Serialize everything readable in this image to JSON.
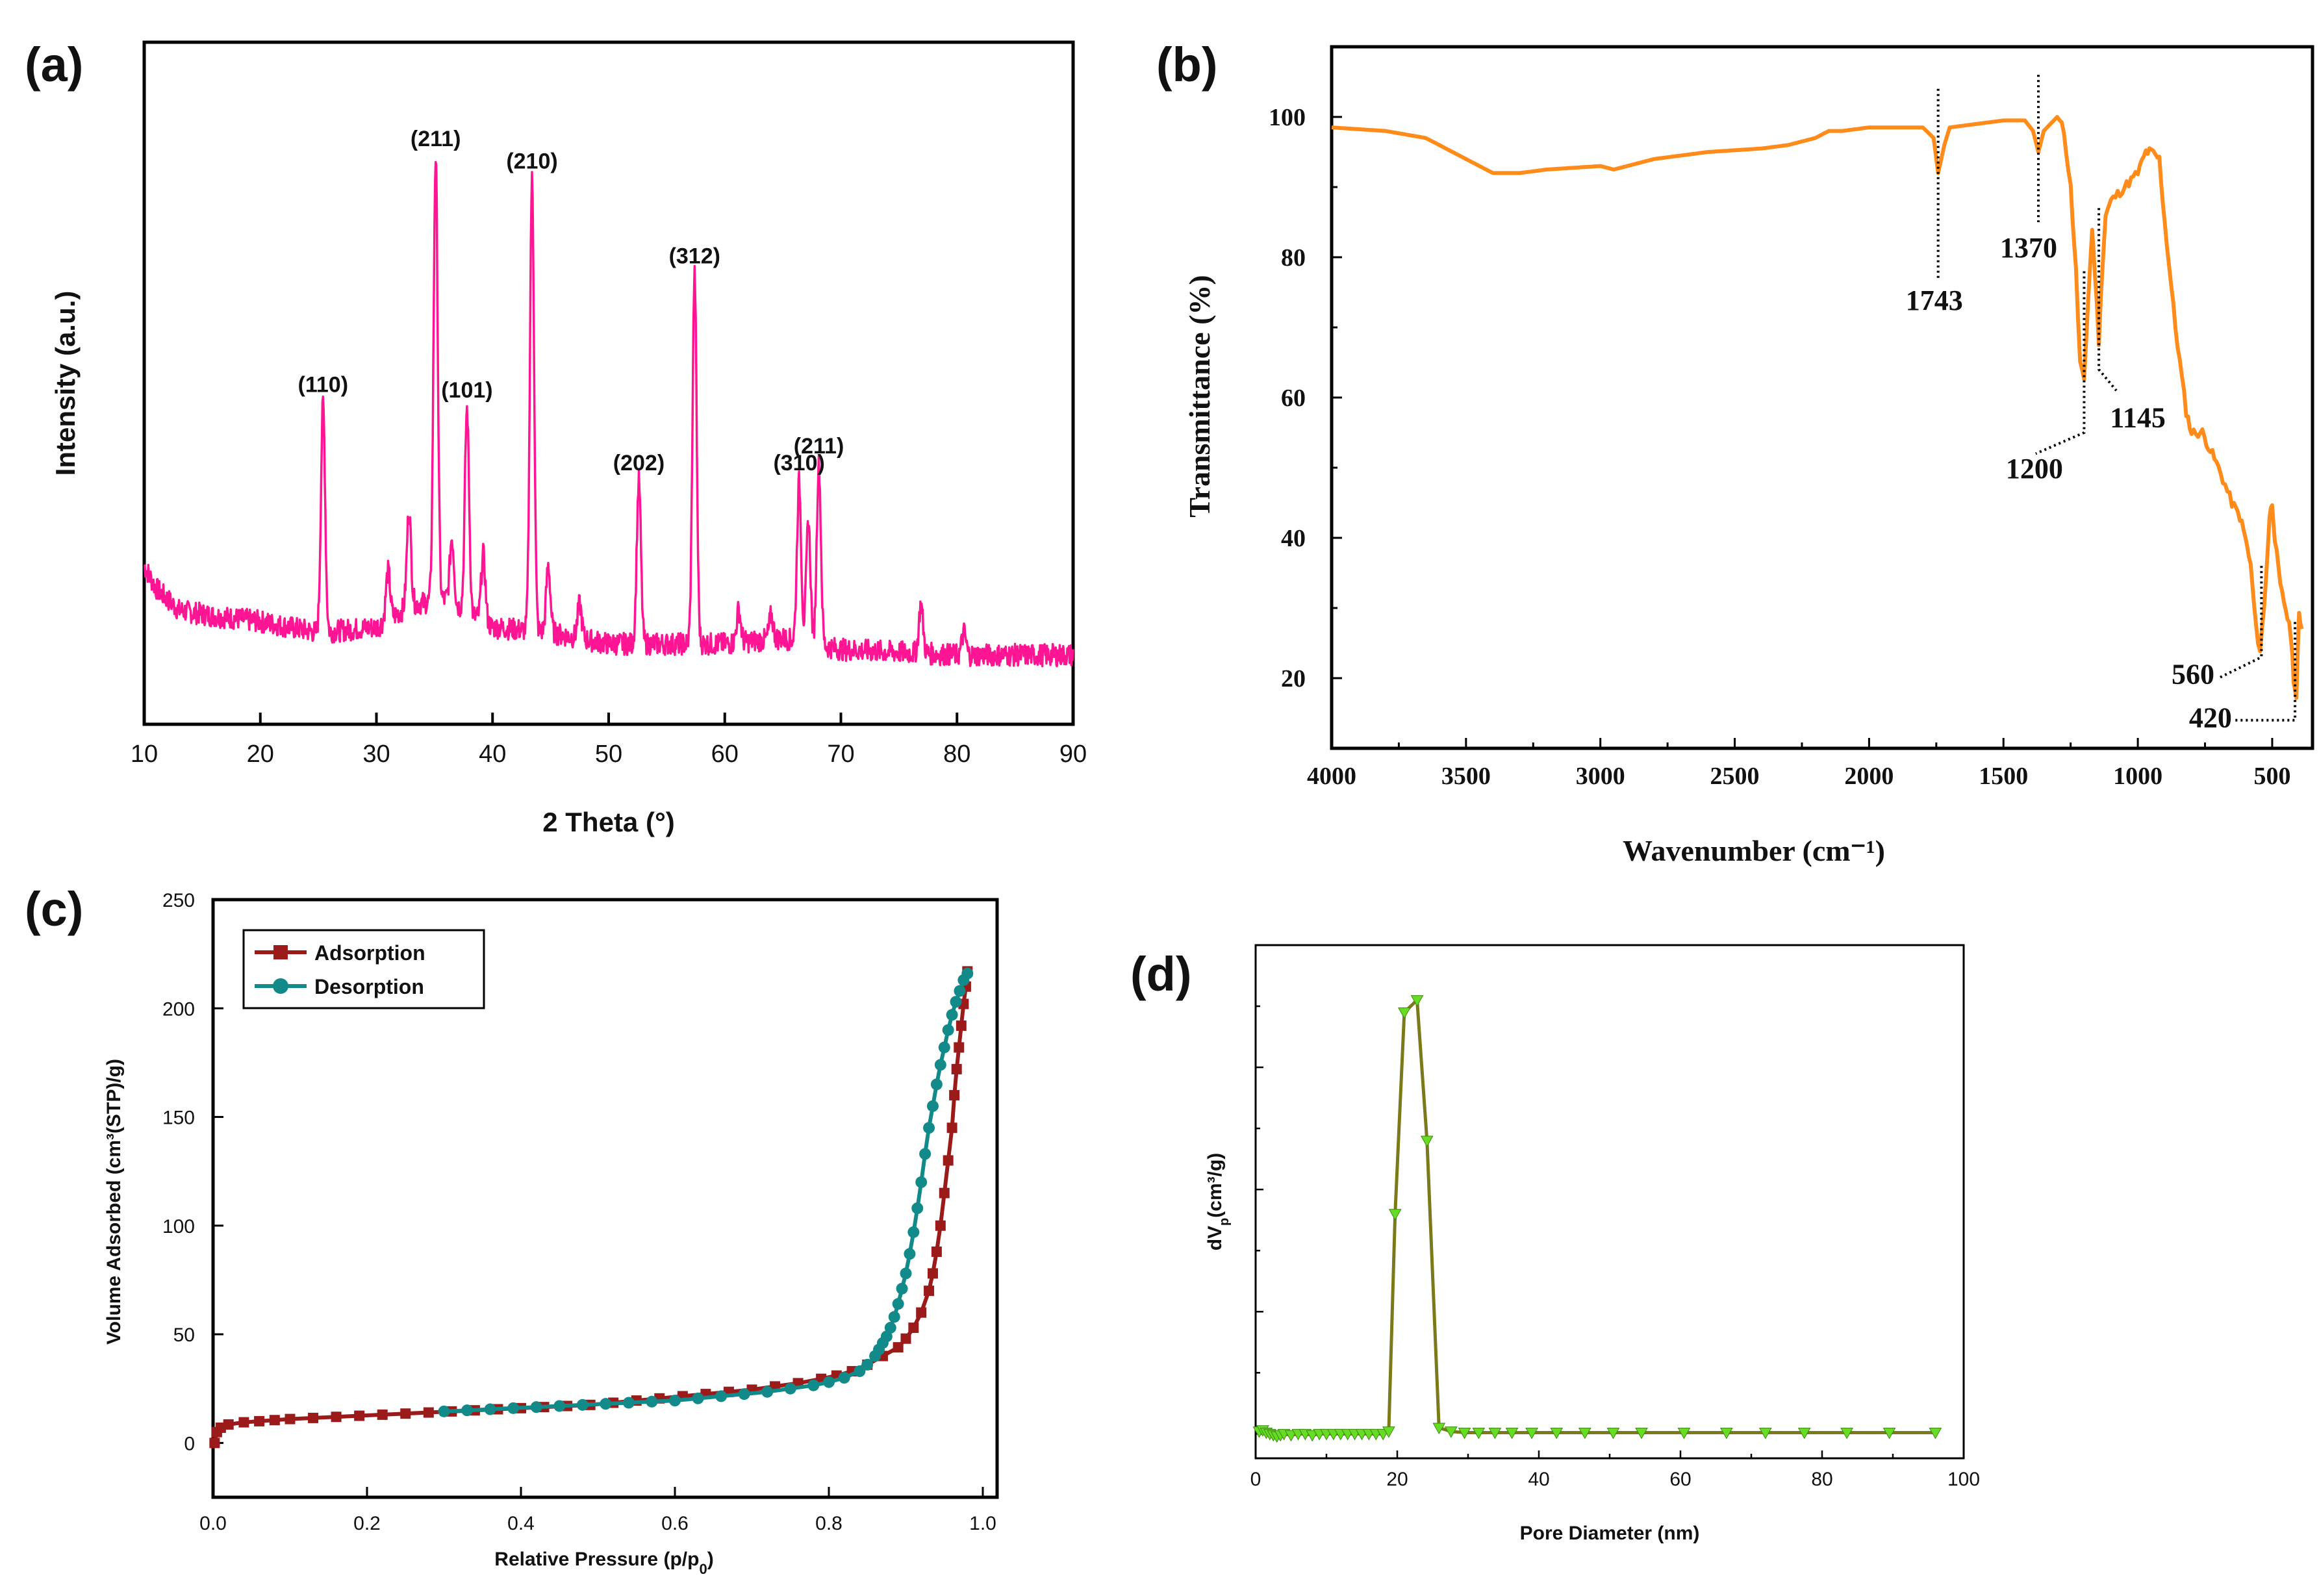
{
  "colors": {
    "xrd": "#ff1493",
    "ftir": "#ff8c1a",
    "adsorption": "#9b1b1b",
    "desorption": "#138a8a",
    "pore_line": "#7a7a1a",
    "pore_marker": "#66dd22",
    "dots": "#000000"
  },
  "chart_data": [
    {
      "panel": "(a)",
      "type": "line",
      "xlabel": "2 Theta (°)",
      "ylabel": "Intensity (a.u.)",
      "xlim": [
        10,
        90
      ],
      "ylim": [
        0,
        100
      ],
      "xticks": [
        "10",
        "20",
        "30",
        "40",
        "50",
        "60",
        "70",
        "80",
        "90"
      ],
      "xtick_values": [
        10,
        20,
        30,
        40,
        50,
        60,
        70,
        80,
        90
      ],
      "baseline": [
        [
          10,
          22
        ],
        [
          11,
          18
        ],
        [
          13,
          14
        ],
        [
          16,
          13
        ],
        [
          20,
          12
        ],
        [
          25,
          10
        ],
        [
          30,
          11
        ],
        [
          33,
          15
        ],
        [
          36,
          16
        ],
        [
          40,
          11
        ],
        [
          45,
          10
        ],
        [
          50,
          8
        ],
        [
          55,
          8
        ],
        [
          60,
          8
        ],
        [
          65,
          9
        ],
        [
          70,
          7
        ],
        [
          80,
          6
        ],
        [
          90,
          6
        ]
      ],
      "peaks": [
        {
          "x": 25.4,
          "y": 51,
          "label": "(110)"
        },
        {
          "x": 31.0,
          "y": 21
        },
        {
          "x": 32.8,
          "y": 32
        },
        {
          "x": 35.1,
          "y": 95,
          "label": "(211)"
        },
        {
          "x": 36.5,
          "y": 27
        },
        {
          "x": 37.8,
          "y": 50,
          "label": "(101)"
        },
        {
          "x": 39.2,
          "y": 24
        },
        {
          "x": 43.4,
          "y": 91,
          "label": "(210)"
        },
        {
          "x": 44.8,
          "y": 22
        },
        {
          "x": 47.5,
          "y": 15
        },
        {
          "x": 52.6,
          "y": 37,
          "label": "(202)"
        },
        {
          "x": 57.4,
          "y": 74,
          "label": "(312)"
        },
        {
          "x": 61.2,
          "y": 14
        },
        {
          "x": 64.0,
          "y": 13
        },
        {
          "x": 66.4,
          "y": 37,
          "label": "(310)"
        },
        {
          "x": 67.2,
          "y": 30
        },
        {
          "x": 68.1,
          "y": 40,
          "label": "(211)"
        },
        {
          "x": 76.9,
          "y": 15
        },
        {
          "x": 80.6,
          "y": 10
        }
      ]
    },
    {
      "panel": "(b)",
      "type": "line",
      "xlabel": "Wavenumber (cm⁻¹)",
      "ylabel": "Transmittance (%)",
      "xlim": [
        4000,
        350
      ],
      "ylim": [
        10,
        110
      ],
      "xticks": [
        "4000",
        "3500",
        "3000",
        "2500",
        "2000",
        "1500",
        "1000",
        "500"
      ],
      "xtick_values": [
        4000,
        3500,
        3000,
        2500,
        2000,
        1500,
        1000,
        500
      ],
      "yticks": [
        "20",
        "40",
        "60",
        "80",
        "100"
      ],
      "ytick_values": [
        20,
        40,
        60,
        80,
        100
      ],
      "x": [
        4000,
        3800,
        3650,
        3500,
        3400,
        3300,
        3200,
        3000,
        2950,
        2800,
        2600,
        2400,
        2300,
        2200,
        2150,
        2100,
        2000,
        1900,
        1800,
        1760,
        1743,
        1720,
        1700,
        1600,
        1500,
        1420,
        1390,
        1370,
        1350,
        1300,
        1275,
        1250,
        1230,
        1215,
        1200,
        1185,
        1170,
        1160,
        1145,
        1130,
        1120,
        1100,
        1050,
        1000,
        970,
        950,
        920,
        900,
        860,
        820,
        800,
        760,
        700,
        650,
        620,
        600,
        580,
        560,
        545,
        530,
        510,
        500,
        490,
        470,
        450,
        430,
        420,
        410,
        400,
        390
      ],
      "y": [
        98.5,
        98,
        97,
        94,
        92,
        92,
        92.5,
        93,
        92.5,
        94,
        95,
        95.5,
        96,
        97,
        98,
        98,
        98.5,
        98.5,
        98.5,
        97,
        92,
        96,
        98.5,
        99,
        99.5,
        99.5,
        98,
        95,
        98,
        100,
        98,
        90,
        78,
        65,
        62,
        74,
        84,
        78,
        68,
        80,
        86,
        88,
        90,
        92,
        95,
        95,
        94,
        85,
        70,
        58,
        55,
        55,
        50,
        45,
        43,
        40,
        36,
        27,
        24,
        30,
        43,
        45,
        40,
        33,
        30,
        26,
        20,
        17,
        29,
        27
      ],
      "annotations": [
        {
          "label": "1743",
          "x": 1743
        },
        {
          "label": "1370",
          "x": 1370
        },
        {
          "label": "1200",
          "x": 1200
        },
        {
          "label": "1145",
          "x": 1145
        },
        {
          "label": "560",
          "x": 560
        },
        {
          "label": "420",
          "x": 420
        }
      ]
    },
    {
      "panel": "(c)",
      "type": "line",
      "xlabel": "Relative Pressure (p/p",
      "xlabel_sub": "0",
      "xlabel_end": ")",
      "ylabel": "Volume Adsorbed (cm³(STP)/g)",
      "xlim": [
        0,
        1.0
      ],
      "ylim": [
        -25,
        250
      ],
      "xticks": [
        "0.0",
        "0.2",
        "0.4",
        "0.6",
        "0.8",
        "1.0"
      ],
      "xtick_values": [
        0.0,
        0.2,
        0.4,
        0.6,
        0.8,
        1.0
      ],
      "yticks": [
        "0",
        "50",
        "100",
        "150",
        "200",
        "250"
      ],
      "ytick_values": [
        0,
        50,
        100,
        150,
        200,
        250
      ],
      "legend_position": "top-left",
      "series": [
        {
          "name": "Adsorption",
          "x": [
            0.002,
            0.005,
            0.01,
            0.02,
            0.04,
            0.06,
            0.08,
            0.1,
            0.13,
            0.16,
            0.19,
            0.22,
            0.25,
            0.28,
            0.31,
            0.34,
            0.37,
            0.4,
            0.43,
            0.46,
            0.49,
            0.52,
            0.55,
            0.58,
            0.61,
            0.64,
            0.67,
            0.7,
            0.73,
            0.76,
            0.79,
            0.81,
            0.83,
            0.85,
            0.87,
            0.89,
            0.9,
            0.91,
            0.92,
            0.93,
            0.935,
            0.94,
            0.945,
            0.95,
            0.955,
            0.96,
            0.963,
            0.966,
            0.969,
            0.972,
            0.975,
            0.978,
            0.98
          ],
          "y": [
            0,
            5,
            7,
            8.5,
            9.5,
            10,
            10.5,
            11,
            11.5,
            12,
            12.5,
            13,
            13.5,
            14,
            14.5,
            15,
            15.5,
            16,
            16.5,
            17,
            17.5,
            18.5,
            19.5,
            20.5,
            21.5,
            22.5,
            23.5,
            24.5,
            26,
            27.5,
            29.5,
            31,
            33,
            36,
            40,
            44,
            48,
            53,
            60,
            70,
            78,
            88,
            100,
            115,
            130,
            145,
            160,
            172,
            182,
            192,
            202,
            210,
            217
          ]
        },
        {
          "name": "Desorption",
          "x": [
            0.98,
            0.975,
            0.97,
            0.965,
            0.96,
            0.955,
            0.95,
            0.945,
            0.94,
            0.935,
            0.93,
            0.925,
            0.92,
            0.915,
            0.91,
            0.905,
            0.9,
            0.895,
            0.89,
            0.885,
            0.88,
            0.875,
            0.87,
            0.865,
            0.86,
            0.85,
            0.84,
            0.82,
            0.8,
            0.78,
            0.75,
            0.72,
            0.69,
            0.66,
            0.63,
            0.6,
            0.57,
            0.54,
            0.51,
            0.48,
            0.45,
            0.42,
            0.39,
            0.36,
            0.33,
            0.3
          ],
          "y": [
            216,
            213,
            208,
            203,
            197,
            190,
            182,
            174,
            165,
            155,
            145,
            133,
            120,
            108,
            97,
            87,
            78,
            71,
            64,
            58,
            53,
            49,
            46,
            43,
            40,
            36,
            33,
            30,
            28,
            26.5,
            25,
            23.5,
            22.5,
            21.5,
            20.5,
            19.5,
            19,
            18.5,
            18,
            17.5,
            17,
            16.5,
            16,
            15.5,
            15,
            14.5
          ]
        }
      ]
    },
    {
      "panel": "(d)",
      "type": "line",
      "xlabel": "Pore Diameter (nm)",
      "ylabel": "dV",
      "ylabel_sub": "p",
      "ylabel_end": "(cm³/g)",
      "xlim": [
        0,
        100
      ],
      "ylim": [
        -0.2,
        4.0
      ],
      "xticks": [
        "0",
        "20",
        "40",
        "60",
        "80",
        "100"
      ],
      "xtick_values": [
        0,
        20,
        40,
        60,
        80,
        100
      ],
      "x": [
        0.5,
        1,
        1.5,
        2,
        2.5,
        3,
        3.5,
        4,
        5,
        6,
        7,
        8,
        9,
        10,
        11,
        12,
        13,
        14,
        15,
        16,
        17,
        18,
        18.8,
        19.7,
        21.0,
        22.8,
        24.2,
        25.9,
        27.6,
        29.5,
        31.5,
        33.8,
        36.2,
        39.0,
        42.5,
        46.5,
        50.5,
        54.5,
        60.5,
        66.5,
        72.0,
        77.5,
        83.5,
        89.5,
        96.0
      ],
      "y": [
        0.02,
        0.03,
        0.01,
        0.0,
        -0.01,
        -0.02,
        -0.01,
        0.0,
        -0.01,
        0.0,
        0.0,
        -0.01,
        0.0,
        0.0,
        0.0,
        0.0,
        0.0,
        0.0,
        0.0,
        0.0,
        0.0,
        0.0,
        0.02,
        1.8,
        3.45,
        3.55,
        2.4,
        0.05,
        0.02,
        0.01,
        0.01,
        0.01,
        0.01,
        0.01,
        0.01,
        0.01,
        0.01,
        0.01,
        0.01,
        0.01,
        0.01,
        0.01,
        0.01,
        0.01,
        0.01
      ]
    }
  ]
}
